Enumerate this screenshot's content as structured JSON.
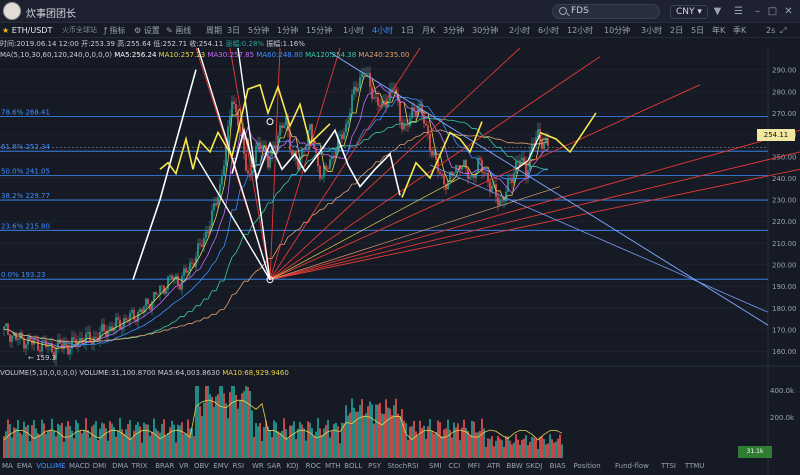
{
  "app": {
    "name": "炊事团团长",
    "search_value": "FDS",
    "currency": "CNY"
  },
  "toolbar": {
    "symbol": "ETH/USDT",
    "exchange": "火币全球站",
    "tools": [
      "指标",
      "设置",
      "画线"
    ],
    "periods": [
      "周期",
      "3日",
      "5分钟",
      "1分钟",
      "15分钟",
      "1小时",
      "4小时",
      "1日",
      "月K",
      "3分钟",
      "30分钟",
      "2小时",
      "6小时",
      "12小时",
      "10分钟",
      "3小时",
      "2日",
      "5日",
      "年K",
      "季K"
    ],
    "active_period": "4小时",
    "right_ctrl": "2s"
  },
  "info": {
    "date": "时间:2019.06.14 12:00",
    "open": "开:253.39",
    "high": "高:255.64",
    "low": "低:252.71",
    "close": "收:254.11",
    "change": "涨幅:0.28%",
    "amplitude": "振幅:1.16%"
  },
  "ma": {
    "params": "MA(5,10,30,60,120,240,0,0,0,0)",
    "ma5": "MA5:256.24",
    "ma10": "MA10:257.23",
    "ma30": "MA30:257.85",
    "ma60": "MA60:248.80",
    "ma120": "MA120:254.38",
    "ma240": "MA240:235.00"
  },
  "fib": [
    {
      "label": "78.6% 268.41",
      "price": 268.41
    },
    {
      "label": "61.8% 252.34",
      "price": 252.34
    },
    {
      "label": "50.0% 241.05",
      "price": 241.05
    },
    {
      "label": "38.2% 229.77",
      "price": 229.77
    },
    {
      "label": "23.6% 215.80",
      "price": 215.8
    },
    {
      "label": "0.0% 193.23",
      "price": 193.23
    }
  ],
  "current_price": "254.11",
  "low_label": "← 159.3",
  "volume": {
    "params": "VOLUME(5,10,0,0,0,0)",
    "volume": "VOLUME:31,100.8700",
    "ma5": "MA5:64,003.8630",
    "ma10": "MA10:68,929.9460",
    "axis": [
      "400.0k",
      "200.0k"
    ],
    "current": "31.1k"
  },
  "indicators": [
    "MA",
    "EMA",
    "VOLUME",
    "MACD",
    "DMI",
    "DMA",
    "TRIX",
    "BRAR",
    "VR",
    "OBV",
    "EMV",
    "RSI",
    "WR",
    "SAR",
    "KDJ",
    "ROC",
    "MTH",
    "BOLL",
    "PSY",
    "StochRSI",
    "SMI",
    "CCI",
    "MFI",
    "ATR",
    "BBW",
    "SKDJ",
    "BIAS",
    "Position",
    "Fund-flow",
    "TTSI",
    "TTMU"
  ],
  "active_indicator": "VOLUME",
  "colors": {
    "bg": "#161a25",
    "up": "#26a69a",
    "down": "#ef5350",
    "ma5": "#ffffff",
    "ma10": "#e8d44d",
    "ma30": "#c46bf2",
    "ma60": "#3d8fff",
    "ma120": "#39c9a0",
    "ma240": "#e0a070",
    "fib": "#3d8fff",
    "fan": "#e53935",
    "trend": "#7aa2f7"
  },
  "chart_data": {
    "type": "candlestick",
    "timeframe": "4小时",
    "symbol": "ETH/USDT",
    "ylim": [
      155,
      300
    ],
    "y_ticks": [
      290,
      280,
      270,
      260,
      250,
      240,
      230,
      220,
      210,
      200,
      190,
      180,
      170,
      160
    ],
    "last_candle": {
      "time": "2019.06.14 12:00",
      "open": 253.39,
      "high": 255.64,
      "low": 252.71,
      "close": 254.11
    },
    "price_path": [
      [
        0,
        170
      ],
      [
        3,
        168
      ],
      [
        6,
        166
      ],
      [
        10,
        165
      ],
      [
        14,
        164
      ],
      [
        18,
        163
      ],
      [
        22,
        162.5
      ],
      [
        25,
        160
      ],
      [
        28,
        163
      ],
      [
        32,
        162
      ],
      [
        36,
        164
      ],
      [
        40,
        166
      ],
      [
        44,
        165
      ],
      [
        48,
        168
      ],
      [
        52,
        170
      ],
      [
        56,
        172
      ],
      [
        60,
        174
      ],
      [
        64,
        176
      ],
      [
        68,
        178
      ],
      [
        72,
        182
      ],
      [
        76,
        186
      ],
      [
        80,
        190
      ],
      [
        84,
        194
      ],
      [
        88,
        192
      ],
      [
        92,
        198
      ],
      [
        96,
        204
      ],
      [
        100,
        212
      ],
      [
        104,
        222
      ],
      [
        108,
        236
      ],
      [
        112,
        260
      ],
      [
        114,
        278
      ],
      [
        117,
        266
      ],
      [
        120,
        250
      ],
      [
        123,
        240
      ],
      [
        126,
        252
      ],
      [
        129,
        258
      ],
      [
        132,
        246
      ],
      [
        135,
        255
      ],
      [
        138,
        262
      ],
      [
        141,
        266
      ],
      [
        144,
        252
      ],
      [
        147,
        245
      ],
      [
        150,
        256
      ],
      [
        153,
        262
      ],
      [
        156,
        250
      ],
      [
        159,
        240
      ],
      [
        162,
        246
      ],
      [
        165,
        252
      ],
      [
        168,
        258
      ],
      [
        171,
        264
      ],
      [
        174,
        276
      ],
      [
        177,
        284
      ],
      [
        180,
        290
      ],
      [
        183,
        282
      ],
      [
        186,
        276
      ],
      [
        189,
        272
      ],
      [
        192,
        278
      ],
      [
        195,
        282
      ],
      [
        198,
        268
      ],
      [
        201,
        262
      ],
      [
        204,
        270
      ],
      [
        207,
        274
      ],
      [
        210,
        266
      ],
      [
        213,
        256
      ],
      [
        216,
        246
      ],
      [
        219,
        240
      ],
      [
        222,
        237
      ],
      [
        225,
        244
      ],
      [
        228,
        247
      ],
      [
        231,
        243
      ],
      [
        234,
        240
      ],
      [
        237,
        246
      ],
      [
        240,
        244
      ],
      [
        243,
        236
      ],
      [
        246,
        232
      ],
      [
        249,
        228
      ],
      [
        252,
        236
      ],
      [
        255,
        244
      ],
      [
        258,
        249
      ],
      [
        261,
        243
      ],
      [
        264,
        254
      ],
      [
        267,
        260
      ],
      [
        270,
        256
      ],
      [
        273,
        254
      ]
    ],
    "zigzag": [
      {
        "color": "white",
        "points": [
          [
            133,
            193
          ],
          [
            160,
            230
          ],
          [
            196,
            290
          ]
        ]
      },
      {
        "color": "yellow",
        "points": [
          [
            160,
            244
          ],
          [
            168,
            247
          ],
          [
            176,
            242
          ],
          [
            186,
            258
          ],
          [
            193,
            244
          ],
          [
            200,
            257
          ],
          [
            210,
            252
          ],
          [
            218,
            261
          ],
          [
            232,
            250
          ],
          [
            248,
            281
          ],
          [
            260,
            283
          ],
          [
            268,
            270
          ],
          [
            278,
            282
          ],
          [
            290,
            264
          ],
          [
            300,
            274
          ],
          [
            310,
            256
          ],
          [
            330,
            265
          ]
        ]
      },
      {
        "color": "white",
        "points": [
          [
            232,
            242
          ],
          [
            244,
            262
          ],
          [
            257,
            240
          ],
          [
            270,
            256
          ],
          [
            282,
            244
          ],
          [
            295,
            251
          ],
          [
            305,
            243
          ],
          [
            320,
            252
          ],
          [
            335,
            262
          ],
          [
            348,
            246
          ],
          [
            360,
            236
          ],
          [
            375,
            244
          ],
          [
            390,
            251
          ],
          [
            400,
            232
          ]
        ]
      },
      {
        "color": "yellow",
        "points": [
          [
            402,
            231
          ],
          [
            416,
            247
          ],
          [
            430,
            240
          ],
          [
            450,
            261
          ],
          [
            460,
            258
          ],
          [
            470,
            252
          ],
          [
            482,
            266
          ]
        ]
      }
    ],
    "fan_origin": [
      133,
      193
    ],
    "volume_max": "400.0k"
  }
}
